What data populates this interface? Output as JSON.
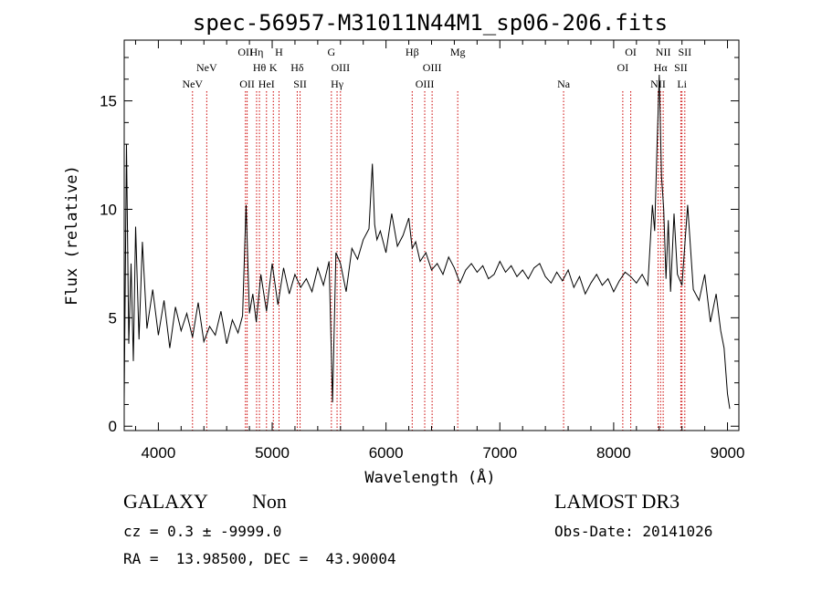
{
  "chart_data": {
    "type": "line",
    "title": "spec-56957-M31011N44M1_sp06-206.fits",
    "xlabel": "Wavelength (Å)",
    "ylabel": "Flux (relative)",
    "xlim": [
      3700,
      9100
    ],
    "ylim": [
      -0.2,
      17.8
    ],
    "xticks": [
      4000,
      5000,
      6000,
      7000,
      8000,
      9000
    ],
    "yticks": [
      0,
      5,
      10,
      15
    ],
    "grid": false,
    "line_color": "#000000",
    "marker_color": "#cc0000",
    "series": [
      {
        "x": [
          3700,
          3720,
          3740,
          3760,
          3780,
          3800,
          3830,
          3860,
          3900,
          3950,
          4000,
          4050,
          4100,
          4150,
          4200,
          4250,
          4300,
          4350,
          4400,
          4450,
          4500,
          4550,
          4600,
          4650,
          4700,
          4740,
          4770,
          4800,
          4830,
          4860,
          4900,
          4950,
          5000,
          5050,
          5100,
          5150,
          5200,
          5250,
          5300,
          5350,
          5400,
          5450,
          5500,
          5530,
          5560,
          5600,
          5650,
          5700,
          5750,
          5800,
          5850,
          5880,
          5900,
          5920,
          5950,
          6000,
          6050,
          6100,
          6150,
          6200,
          6230,
          6260,
          6300,
          6350,
          6400,
          6450,
          6500,
          6550,
          6600,
          6650,
          6700,
          6750,
          6800,
          6850,
          6900,
          6950,
          7000,
          7050,
          7100,
          7150,
          7200,
          7250,
          7300,
          7350,
          7400,
          7450,
          7500,
          7550,
          7600,
          7650,
          7700,
          7750,
          7800,
          7850,
          7900,
          7950,
          8000,
          8050,
          8100,
          8150,
          8200,
          8250,
          8300,
          8340,
          8360,
          8380,
          8400,
          8420,
          8440,
          8460,
          8480,
          8500,
          8530,
          8560,
          8600,
          8650,
          8700,
          8750,
          8800,
          8850,
          8900,
          8940,
          8970,
          9000,
          9020
        ],
        "y": [
          1.2,
          13.0,
          3.8,
          7.5,
          3.0,
          9.2,
          4.0,
          8.5,
          4.5,
          6.3,
          4.2,
          5.8,
          3.6,
          5.5,
          4.4,
          5.2,
          4.1,
          5.7,
          3.9,
          4.6,
          4.2,
          5.3,
          3.8,
          4.9,
          4.3,
          5.1,
          10.2,
          5.2,
          6.1,
          4.8,
          7.0,
          5.3,
          7.5,
          5.6,
          7.3,
          6.1,
          7.0,
          6.4,
          6.8,
          6.2,
          7.3,
          6.5,
          7.6,
          1.1,
          8.0,
          7.5,
          6.2,
          8.2,
          7.7,
          8.6,
          9.1,
          12.1,
          9.3,
          8.6,
          9.0,
          8.0,
          9.8,
          8.3,
          8.8,
          9.6,
          8.2,
          8.5,
          7.6,
          8.0,
          7.2,
          7.5,
          7.0,
          7.8,
          7.3,
          6.6,
          7.2,
          7.5,
          7.1,
          7.4,
          6.8,
          7.0,
          7.6,
          7.1,
          7.4,
          6.9,
          7.2,
          6.8,
          7.3,
          7.5,
          6.9,
          6.6,
          7.1,
          6.7,
          7.2,
          6.4,
          6.9,
          6.1,
          6.6,
          7.0,
          6.5,
          6.8,
          6.2,
          6.7,
          7.1,
          6.9,
          6.6,
          7.0,
          6.5,
          10.2,
          9.0,
          12.8,
          16.2,
          11.5,
          10.0,
          6.8,
          9.5,
          6.2,
          9.8,
          7.0,
          6.5,
          10.2,
          6.3,
          5.8,
          7.0,
          4.8,
          6.1,
          4.4,
          3.6,
          1.5,
          0.8
        ]
      }
    ],
    "lines": [
      {
        "label": "NeV",
        "x": 4300,
        "row": 3
      },
      {
        "label": "NeV",
        "x": 4425,
        "row": 2
      },
      {
        "label": "OII",
        "x": 4765,
        "row": 1
      },
      {
        "label": "OII",
        "x": 4780,
        "row": 3
      },
      {
        "label": "Hη",
        "x": 4863,
        "row": 1
      },
      {
        "label": "Hθ",
        "x": 4888,
        "row": 2
      },
      {
        "label": "HeI",
        "x": 4950,
        "row": 3
      },
      {
        "label": "K",
        "x": 5010,
        "row": 2
      },
      {
        "label": "H",
        "x": 5060,
        "row": 1
      },
      {
        "label": "Hδ",
        "x": 5220,
        "row": 2
      },
      {
        "label": "SII",
        "x": 5245,
        "row": 3
      },
      {
        "label": "G",
        "x": 5520,
        "row": 1
      },
      {
        "label": "Hγ",
        "x": 5570,
        "row": 3
      },
      {
        "label": "OIII",
        "x": 5600,
        "row": 2
      },
      {
        "label": "Hβ",
        "x": 6230,
        "row": 1
      },
      {
        "label": "OIII",
        "x": 6340,
        "row": 3
      },
      {
        "label": "OIII",
        "x": 6405,
        "row": 2
      },
      {
        "label": "Mg",
        "x": 6630,
        "row": 1
      },
      {
        "label": "Na",
        "x": 7560,
        "row": 3
      },
      {
        "label": "OI",
        "x": 8080,
        "row": 2
      },
      {
        "label": "OI",
        "x": 8150,
        "row": 1
      },
      {
        "label": "NII",
        "x": 8390,
        "row": 3
      },
      {
        "label": "Hα",
        "x": 8412,
        "row": 2
      },
      {
        "label": "NII",
        "x": 8435,
        "row": 1
      },
      {
        "label": "SII",
        "x": 8590,
        "row": 2
      },
      {
        "label": "Li",
        "x": 8600,
        "row": 3
      },
      {
        "label": "SII",
        "x": 8625,
        "row": 1
      }
    ]
  },
  "info": {
    "object_class": "GALAXY",
    "subclass": "Non",
    "survey": "LAMOST DR3",
    "redshift_line": "cz = 0.3 ± -9999.0",
    "obs_date_line": "Obs-Date: 20141026",
    "coords_line": "RA =  13.98500, DEC =  43.90004"
  }
}
